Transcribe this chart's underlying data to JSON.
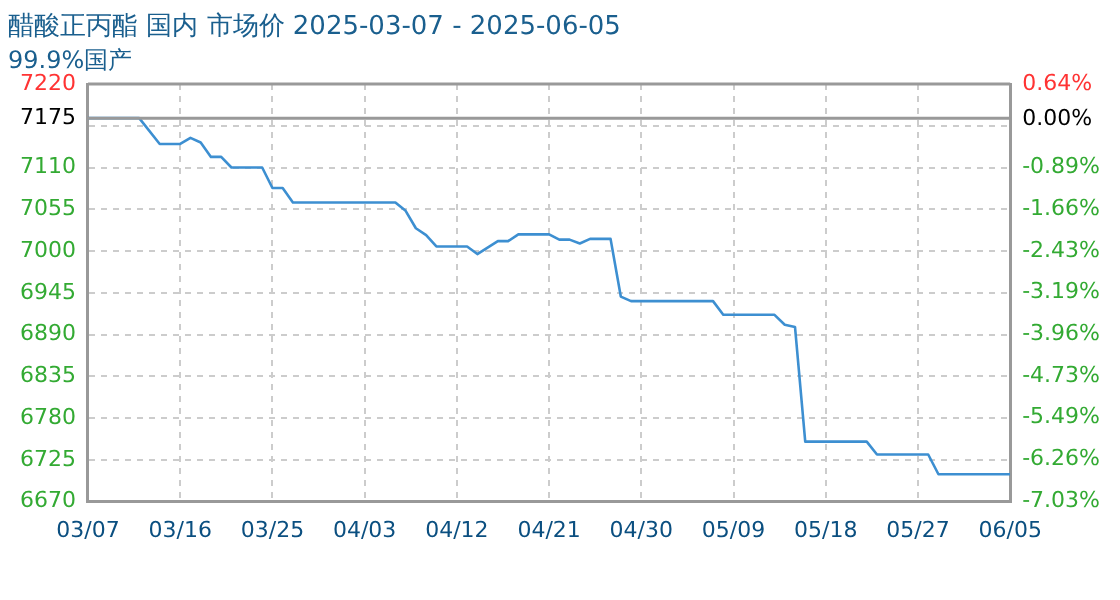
{
  "chart_data": {
    "type": "line",
    "title": "醋酸正丙酯 国内 市场价 2025-03-07 - 2025-06-05",
    "subtitle": "99.9%国产",
    "x": [
      "2025-03-07",
      "2025-03-12",
      "2025-03-14",
      "2025-03-16",
      "2025-03-17",
      "2025-03-18",
      "2025-03-19",
      "2025-03-20",
      "2025-03-21",
      "2025-03-24",
      "2025-03-25",
      "2025-03-26",
      "2025-03-27",
      "2025-04-06",
      "2025-04-07",
      "2025-04-08",
      "2025-04-09",
      "2025-04-10",
      "2025-04-13",
      "2025-04-14",
      "2025-04-16",
      "2025-04-17",
      "2025-04-18",
      "2025-04-21",
      "2025-04-22",
      "2025-04-23",
      "2025-04-24",
      "2025-04-25",
      "2025-04-27",
      "2025-04-28",
      "2025-04-29",
      "2025-05-07",
      "2025-05-08",
      "2025-05-13",
      "2025-05-14",
      "2025-05-15",
      "2025-05-16",
      "2025-05-22",
      "2025-05-23",
      "2025-05-28",
      "2025-05-29",
      "2025-06-05"
    ],
    "series": [
      {
        "color": "#3d8fd1",
        "values": [
          7175,
          7175,
          7141,
          7141,
          7149,
          7143,
          7124,
          7124,
          7110,
          7110,
          7083,
          7083,
          7064,
          7064,
          7053,
          7030,
          7021,
          7006,
          7006,
          6996,
          7013,
          7013,
          7022,
          7022,
          7015,
          7015,
          7010,
          7016,
          7016,
          6940,
          6934,
          6934,
          6916,
          6916,
          6903,
          6900,
          6749,
          6749,
          6732,
          6732,
          6706,
          6706
        ]
      }
    ],
    "xlim": [
      "2025-03-07",
      "2025-06-05"
    ],
    "xticks": [
      {
        "value": "2025-03-07",
        "label": "03/07"
      },
      {
        "value": "2025-03-16",
        "label": "03/16"
      },
      {
        "value": "2025-03-25",
        "label": "03/25"
      },
      {
        "value": "2025-04-03",
        "label": "04/03"
      },
      {
        "value": "2025-04-12",
        "label": "04/12"
      },
      {
        "value": "2025-04-21",
        "label": "04/21"
      },
      {
        "value": "2025-04-30",
        "label": "04/30"
      },
      {
        "value": "2025-05-09",
        "label": "05/09"
      },
      {
        "value": "2025-05-18",
        "label": "05/18"
      },
      {
        "value": "2025-05-27",
        "label": "05/27"
      },
      {
        "value": "2025-06-05",
        "label": "06/05"
      }
    ],
    "ylim": [
      6670,
      7220
    ],
    "yticks": [
      7220,
      7175,
      {
        "value": 7165,
        "label": null
      },
      7110,
      7055,
      7000,
      6945,
      6890,
      6835,
      6780,
      6725,
      6670
    ],
    "y2lim": [
      -7.03,
      0.64
    ],
    "y2ticks": [
      {
        "value": 0.64,
        "label": "0.64%"
      },
      {
        "value": 0,
        "label": "0.00%"
      },
      {
        "value": -0.89,
        "label": "-0.89%"
      },
      {
        "value": -1.66,
        "label": "-1.66%"
      },
      {
        "value": -2.43,
        "label": "-2.43%"
      },
      {
        "value": -3.19,
        "label": "-3.19%"
      },
      {
        "value": -3.96,
        "label": "-3.96%"
      },
      {
        "value": -4.73,
        "label": "-4.73%"
      },
      {
        "value": -5.49,
        "label": "-5.49%"
      },
      {
        "value": -6.26,
        "label": "-6.26%"
      },
      {
        "value": -7.03,
        "label": "-7.03%"
      }
    ],
    "ref_lines": [
      {
        "axis": "y",
        "value": 7175,
        "color": "#999999",
        "line_style": "solid"
      }
    ],
    "grid": true,
    "legend": false,
    "marker": "none",
    "line_style": "solid"
  }
}
